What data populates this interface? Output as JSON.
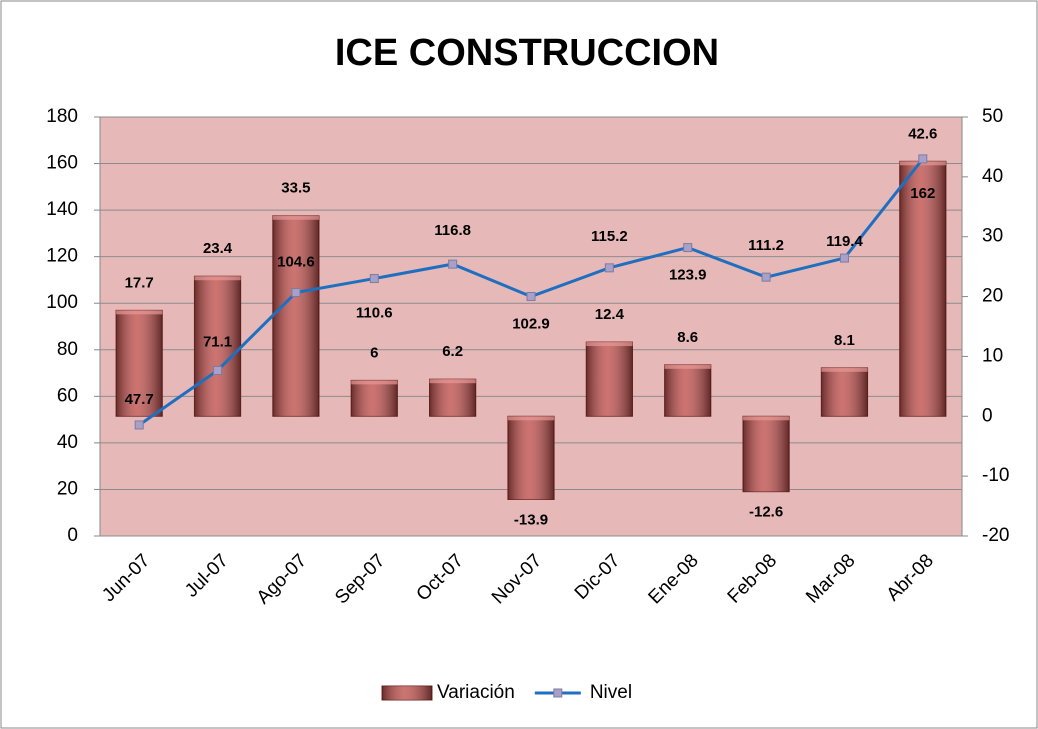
{
  "chart_data": {
    "type": "bar",
    "title": "ICE CONSTRUCCION",
    "categories": [
      "Jun-07",
      "Jul-07",
      "Ago-07",
      "Sep-07",
      "Oct-07",
      "Nov-07",
      "Dic-07",
      "Ene-08",
      "Feb-08",
      "Mar-08",
      "Abr-08"
    ],
    "series": [
      {
        "name": "Variación",
        "type": "bar",
        "axis": "y2",
        "color": "#c0504d",
        "values": [
          17.7,
          23.4,
          33.5,
          6,
          6.2,
          -13.9,
          12.4,
          8.6,
          -12.6,
          8.1,
          42.6
        ]
      },
      {
        "name": "Nivel",
        "type": "line",
        "color": "#1f6fc1",
        "values": [
          47.7,
          71.1,
          104.6,
          110.6,
          116.8,
          102.9,
          115.2,
          123.9,
          111.2,
          119.4,
          162
        ]
      }
    ],
    "ylim": [
      0,
      180
    ],
    "yticks": [
      0,
      20,
      40,
      60,
      80,
      100,
      120,
      140,
      160,
      180
    ],
    "y2lim": [
      -20,
      50
    ],
    "y2ticks": [
      -20,
      -10,
      0,
      10,
      20,
      30,
      40,
      50
    ],
    "grid": true,
    "legend": "bottom",
    "background": "#e6b9b8"
  }
}
